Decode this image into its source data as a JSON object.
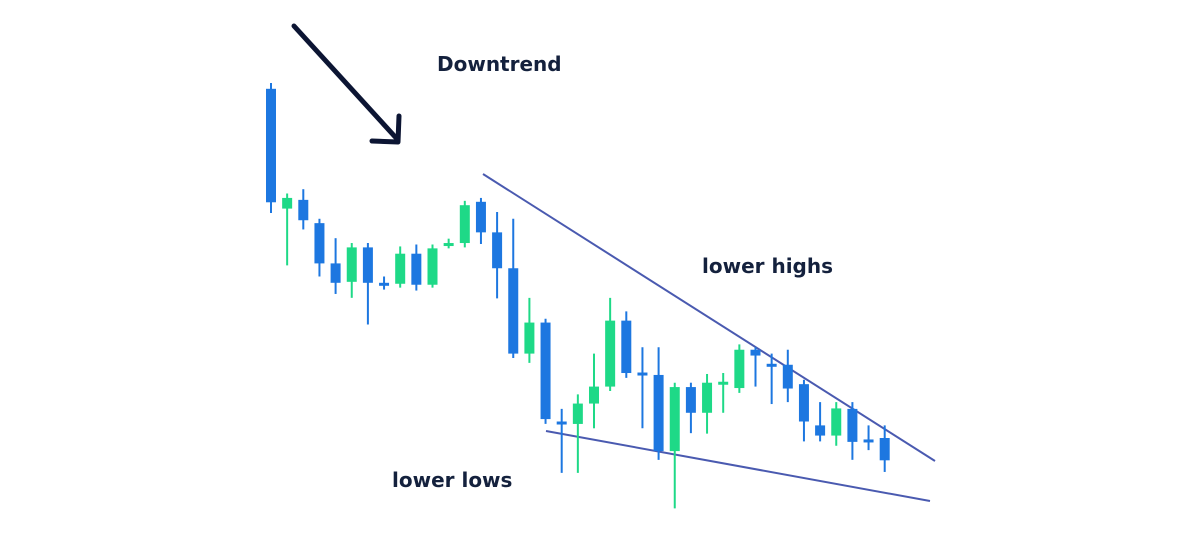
{
  "chart_data": {
    "type": "candlestick",
    "title": "",
    "xlabel": "",
    "ylabel": "",
    "ylim": [
      0,
      100
    ],
    "grid": false,
    "legend": "none",
    "colors": {
      "bear": "#1d77e0",
      "bull": "#1ed987",
      "lines": "#4a5ab0",
      "text": "#14213d",
      "arrow": "#0c1533"
    },
    "annotations": {
      "downtrend": "Downtrend",
      "lower_highs": "lower highs",
      "lower_lows": "lower lows"
    },
    "candles": [
      {
        "open": 92.0,
        "close": 68.6,
        "high": 93.2,
        "low": 66.4
      },
      {
        "open": 67.3,
        "close": 69.5,
        "high": 70.4,
        "low": 55.6
      },
      {
        "open": 69.1,
        "close": 64.9,
        "high": 71.3,
        "low": 63.0
      },
      {
        "open": 64.3,
        "close": 56.0,
        "high": 65.2,
        "low": 53.3
      },
      {
        "open": 56.0,
        "close": 52.0,
        "high": 61.2,
        "low": 49.7
      },
      {
        "open": 52.2,
        "close": 59.3,
        "high": 60.2,
        "low": 48.9
      },
      {
        "open": 59.3,
        "close": 52.0,
        "high": 60.2,
        "low": 43.4
      },
      {
        "open": 52.0,
        "close": 51.4,
        "high": 53.3,
        "low": 50.6
      },
      {
        "open": 51.8,
        "close": 58.0,
        "high": 59.5,
        "low": 51.0
      },
      {
        "open": 58.0,
        "close": 51.6,
        "high": 59.9,
        "low": 50.4
      },
      {
        "open": 51.6,
        "close": 59.1,
        "high": 59.9,
        "low": 51.0
      },
      {
        "open": 59.9,
        "close": 60.2,
        "high": 61.1,
        "low": 59.1
      },
      {
        "open": 60.2,
        "close": 68.0,
        "high": 68.9,
        "low": 59.3
      },
      {
        "open": 68.7,
        "close": 62.4,
        "high": 69.5,
        "low": 60.0
      },
      {
        "open": 62.4,
        "close": 55.0,
        "high": 66.6,
        "low": 48.8
      },
      {
        "open": 55.0,
        "close": 37.4,
        "high": 65.2,
        "low": 36.5
      },
      {
        "open": 37.4,
        "close": 43.8,
        "high": 48.9,
        "low": 35.5
      },
      {
        "open": 43.8,
        "close": 23.9,
        "high": 44.6,
        "low": 22.9
      },
      {
        "open": 23.4,
        "close": 22.9,
        "high": 26.0,
        "low": 12.8
      },
      {
        "open": 22.9,
        "close": 27.1,
        "high": 29.0,
        "low": 12.8
      },
      {
        "open": 27.1,
        "close": 30.6,
        "high": 37.4,
        "low": 22.0
      },
      {
        "open": 30.6,
        "close": 44.2,
        "high": 48.9,
        "low": 29.7
      },
      {
        "open": 44.2,
        "close": 33.4,
        "high": 46.1,
        "low": 32.4
      },
      {
        "open": 33.5,
        "close": 33.0,
        "high": 38.7,
        "low": 22.0
      },
      {
        "open": 33.0,
        "close": 17.3,
        "high": 38.7,
        "low": 15.5
      },
      {
        "open": 17.3,
        "close": 30.5,
        "high": 31.4,
        "low": 5.5
      },
      {
        "open": 30.5,
        "close": 25.2,
        "high": 31.4,
        "low": 21.0
      },
      {
        "open": 25.2,
        "close": 31.4,
        "high": 33.2,
        "low": 20.9
      },
      {
        "open": 31.2,
        "close": 31.6,
        "high": 33.4,
        "low": 25.2
      },
      {
        "open": 30.3,
        "close": 38.2,
        "high": 39.3,
        "low": 29.3
      },
      {
        "open": 38.2,
        "close": 37.0,
        "high": 38.7,
        "low": 30.6
      },
      {
        "open": 35.3,
        "close": 34.7,
        "high": 37.4,
        "low": 27.0
      },
      {
        "open": 35.1,
        "close": 30.2,
        "high": 38.2,
        "low": 27.4
      },
      {
        "open": 31.1,
        "close": 23.4,
        "high": 32.0,
        "low": 19.3
      },
      {
        "open": 22.6,
        "close": 20.5,
        "high": 27.4,
        "low": 19.3
      },
      {
        "open": 20.5,
        "close": 26.1,
        "high": 27.4,
        "low": 18.4
      },
      {
        "open": 26.0,
        "close": 19.2,
        "high": 27.4,
        "low": 15.5
      },
      {
        "open": 19.7,
        "close": 19.1,
        "high": 22.6,
        "low": 17.5
      },
      {
        "open": 20.0,
        "close": 15.4,
        "high": 22.6,
        "low": 13.0
      }
    ]
  }
}
